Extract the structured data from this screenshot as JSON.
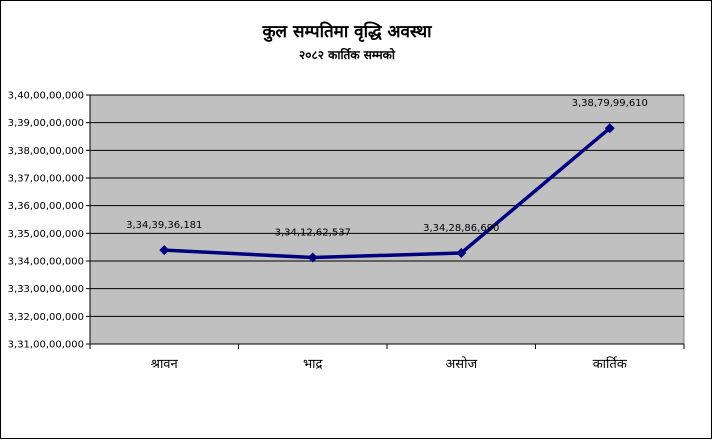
{
  "chart_data": {
    "type": "line",
    "title": "कुल सम्पतिमा वृद्धि अवस्था",
    "subtitle": "२०८२ कार्तिक सम्मको",
    "categories": [
      "श्रावन",
      "भाद्र",
      "असोज",
      "कार्तिक"
    ],
    "series": [
      {
        "values": [
          3343936181,
          3341262537,
          3342886690,
          3387999610
        ],
        "labels": [
          "3,34,39,36,181",
          "3,34,12,62,537",
          "3,34,28,86,690",
          "3,38,79,99,610"
        ]
      }
    ],
    "ylim": [
      3310000000,
      3400000000
    ],
    "yticks": [
      3310000000,
      3320000000,
      3330000000,
      3340000000,
      3350000000,
      3360000000,
      3370000000,
      3380000000,
      3390000000,
      3400000000
    ],
    "ytick_labels": [
      "3,31,00,00,000",
      "3,32,00,00,000",
      "3,33,00,00,000",
      "3,34,00,00,000",
      "3,35,00,00,000",
      "3,36,00,00,000",
      "3,37,00,00,000",
      "3,38,00,00,000",
      "3,39,00,00,000",
      "3,40,00,00,000"
    ],
    "grid": true,
    "legend": "none",
    "colors": {
      "line": "#00007f",
      "plot_background": "#c0c0c0",
      "gridline": "#000000"
    }
  }
}
